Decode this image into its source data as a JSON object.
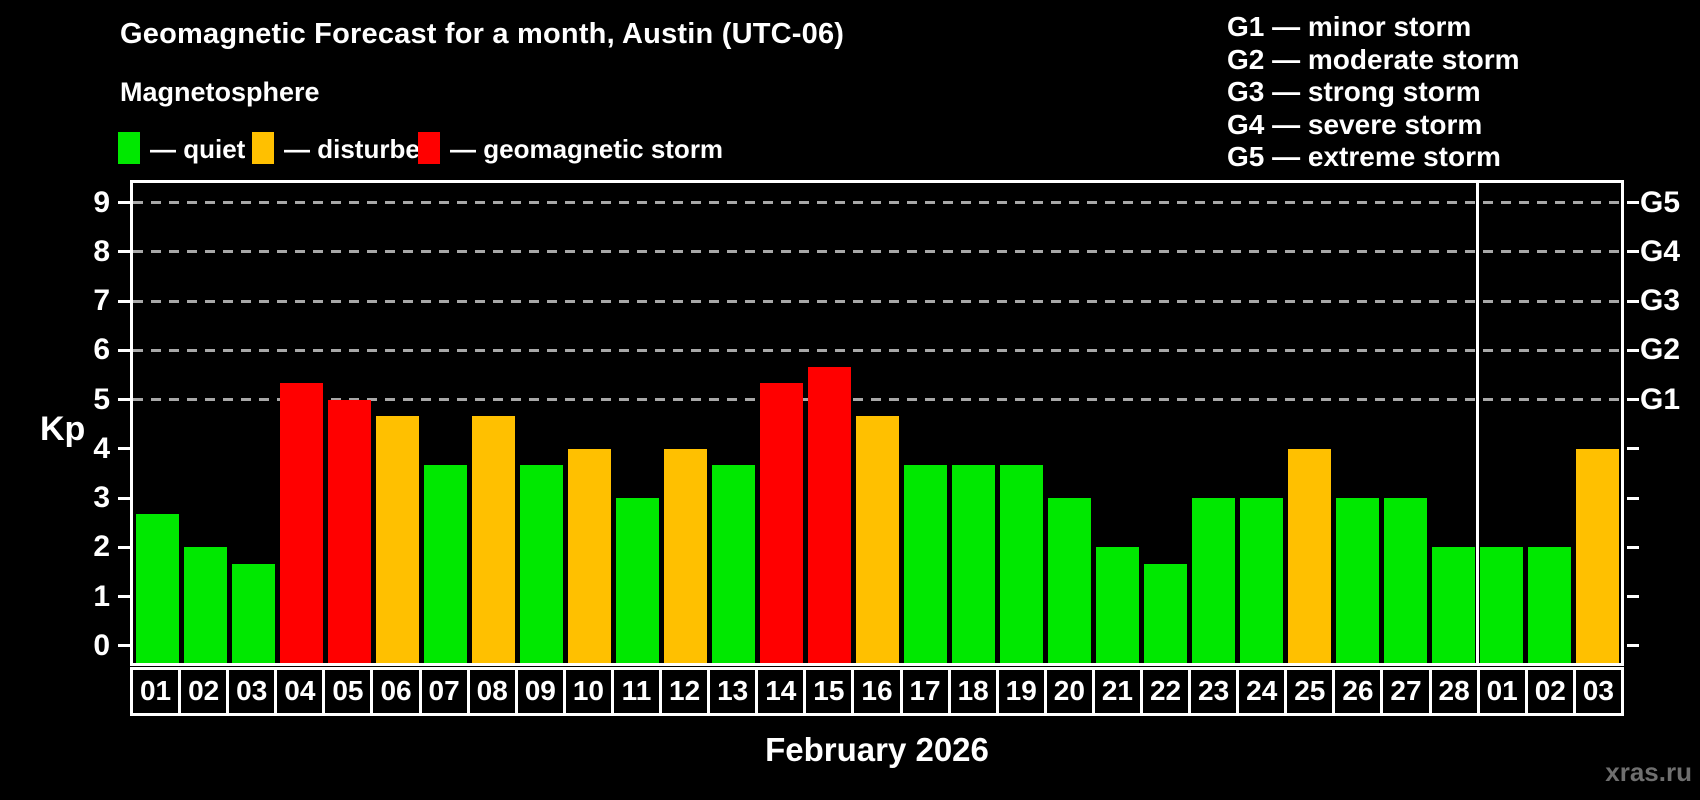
{
  "title": "Geomagnetic Forecast for a month, Austin (UTC-06)",
  "subtitle": "Magnetosphere",
  "magnetosphere_legend": [
    {
      "label": "— quiet",
      "status": "quiet"
    },
    {
      "label": "— disturbed",
      "status": "disturbed"
    },
    {
      "label": "— geomagnetic storm",
      "status": "storm"
    }
  ],
  "g_scale_legend": [
    "G1 — minor storm",
    "G2 — moderate storm",
    "G3 — strong storm",
    "G4 — severe storm",
    "G5 — extreme storm"
  ],
  "watermark": "xras.ru",
  "chart_data": {
    "type": "bar",
    "title": "Geomagnetic Forecast for a month, Austin (UTC-06)",
    "xlabel": "February 2026",
    "ylabel": "Kp",
    "ylim": [
      -0.35,
      9.4
    ],
    "y_ticks": [
      0,
      1,
      2,
      3,
      4,
      5,
      6,
      7,
      8,
      9
    ],
    "grid": "dashed horizontal at G levels",
    "g_levels": [
      {
        "kp": 5,
        "label": "G1"
      },
      {
        "kp": 6,
        "label": "G2"
      },
      {
        "kp": 7,
        "label": "G3"
      },
      {
        "kp": 8,
        "label": "G4"
      },
      {
        "kp": 9,
        "label": "G5"
      }
    ],
    "status_colors": {
      "quiet": "#00e800",
      "disturbed": "#ffc000",
      "storm": "#ff0000"
    },
    "month_separator_after": 28,
    "values": [
      {
        "day": "01",
        "kp": 2.67,
        "status": "quiet"
      },
      {
        "day": "02",
        "kp": 2.0,
        "status": "quiet"
      },
      {
        "day": "03",
        "kp": 1.67,
        "status": "quiet"
      },
      {
        "day": "04",
        "kp": 5.33,
        "status": "storm"
      },
      {
        "day": "05",
        "kp": 5.0,
        "status": "storm"
      },
      {
        "day": "06",
        "kp": 4.67,
        "status": "disturbed"
      },
      {
        "day": "07",
        "kp": 3.67,
        "status": "quiet"
      },
      {
        "day": "08",
        "kp": 4.67,
        "status": "disturbed"
      },
      {
        "day": "09",
        "kp": 3.67,
        "status": "quiet"
      },
      {
        "day": "10",
        "kp": 4.0,
        "status": "disturbed"
      },
      {
        "day": "11",
        "kp": 3.0,
        "status": "quiet"
      },
      {
        "day": "12",
        "kp": 4.0,
        "status": "disturbed"
      },
      {
        "day": "13",
        "kp": 3.67,
        "status": "quiet"
      },
      {
        "day": "14",
        "kp": 5.33,
        "status": "storm"
      },
      {
        "day": "15",
        "kp": 5.67,
        "status": "storm"
      },
      {
        "day": "16",
        "kp": 4.67,
        "status": "disturbed"
      },
      {
        "day": "17",
        "kp": 3.67,
        "status": "quiet"
      },
      {
        "day": "18",
        "kp": 3.67,
        "status": "quiet"
      },
      {
        "day": "19",
        "kp": 3.67,
        "status": "quiet"
      },
      {
        "day": "20",
        "kp": 3.0,
        "status": "quiet"
      },
      {
        "day": "21",
        "kp": 2.0,
        "status": "quiet"
      },
      {
        "day": "22",
        "kp": 1.67,
        "status": "quiet"
      },
      {
        "day": "23",
        "kp": 3.0,
        "status": "quiet"
      },
      {
        "day": "24",
        "kp": 3.0,
        "status": "quiet"
      },
      {
        "day": "25",
        "kp": 4.0,
        "status": "disturbed"
      },
      {
        "day": "26",
        "kp": 3.0,
        "status": "quiet"
      },
      {
        "day": "27",
        "kp": 3.0,
        "status": "quiet"
      },
      {
        "day": "28",
        "kp": 2.0,
        "status": "quiet"
      },
      {
        "day": "01",
        "kp": 2.0,
        "status": "quiet"
      },
      {
        "day": "02",
        "kp": 2.0,
        "status": "quiet"
      },
      {
        "day": "03",
        "kp": 4.0,
        "status": "disturbed"
      }
    ]
  }
}
